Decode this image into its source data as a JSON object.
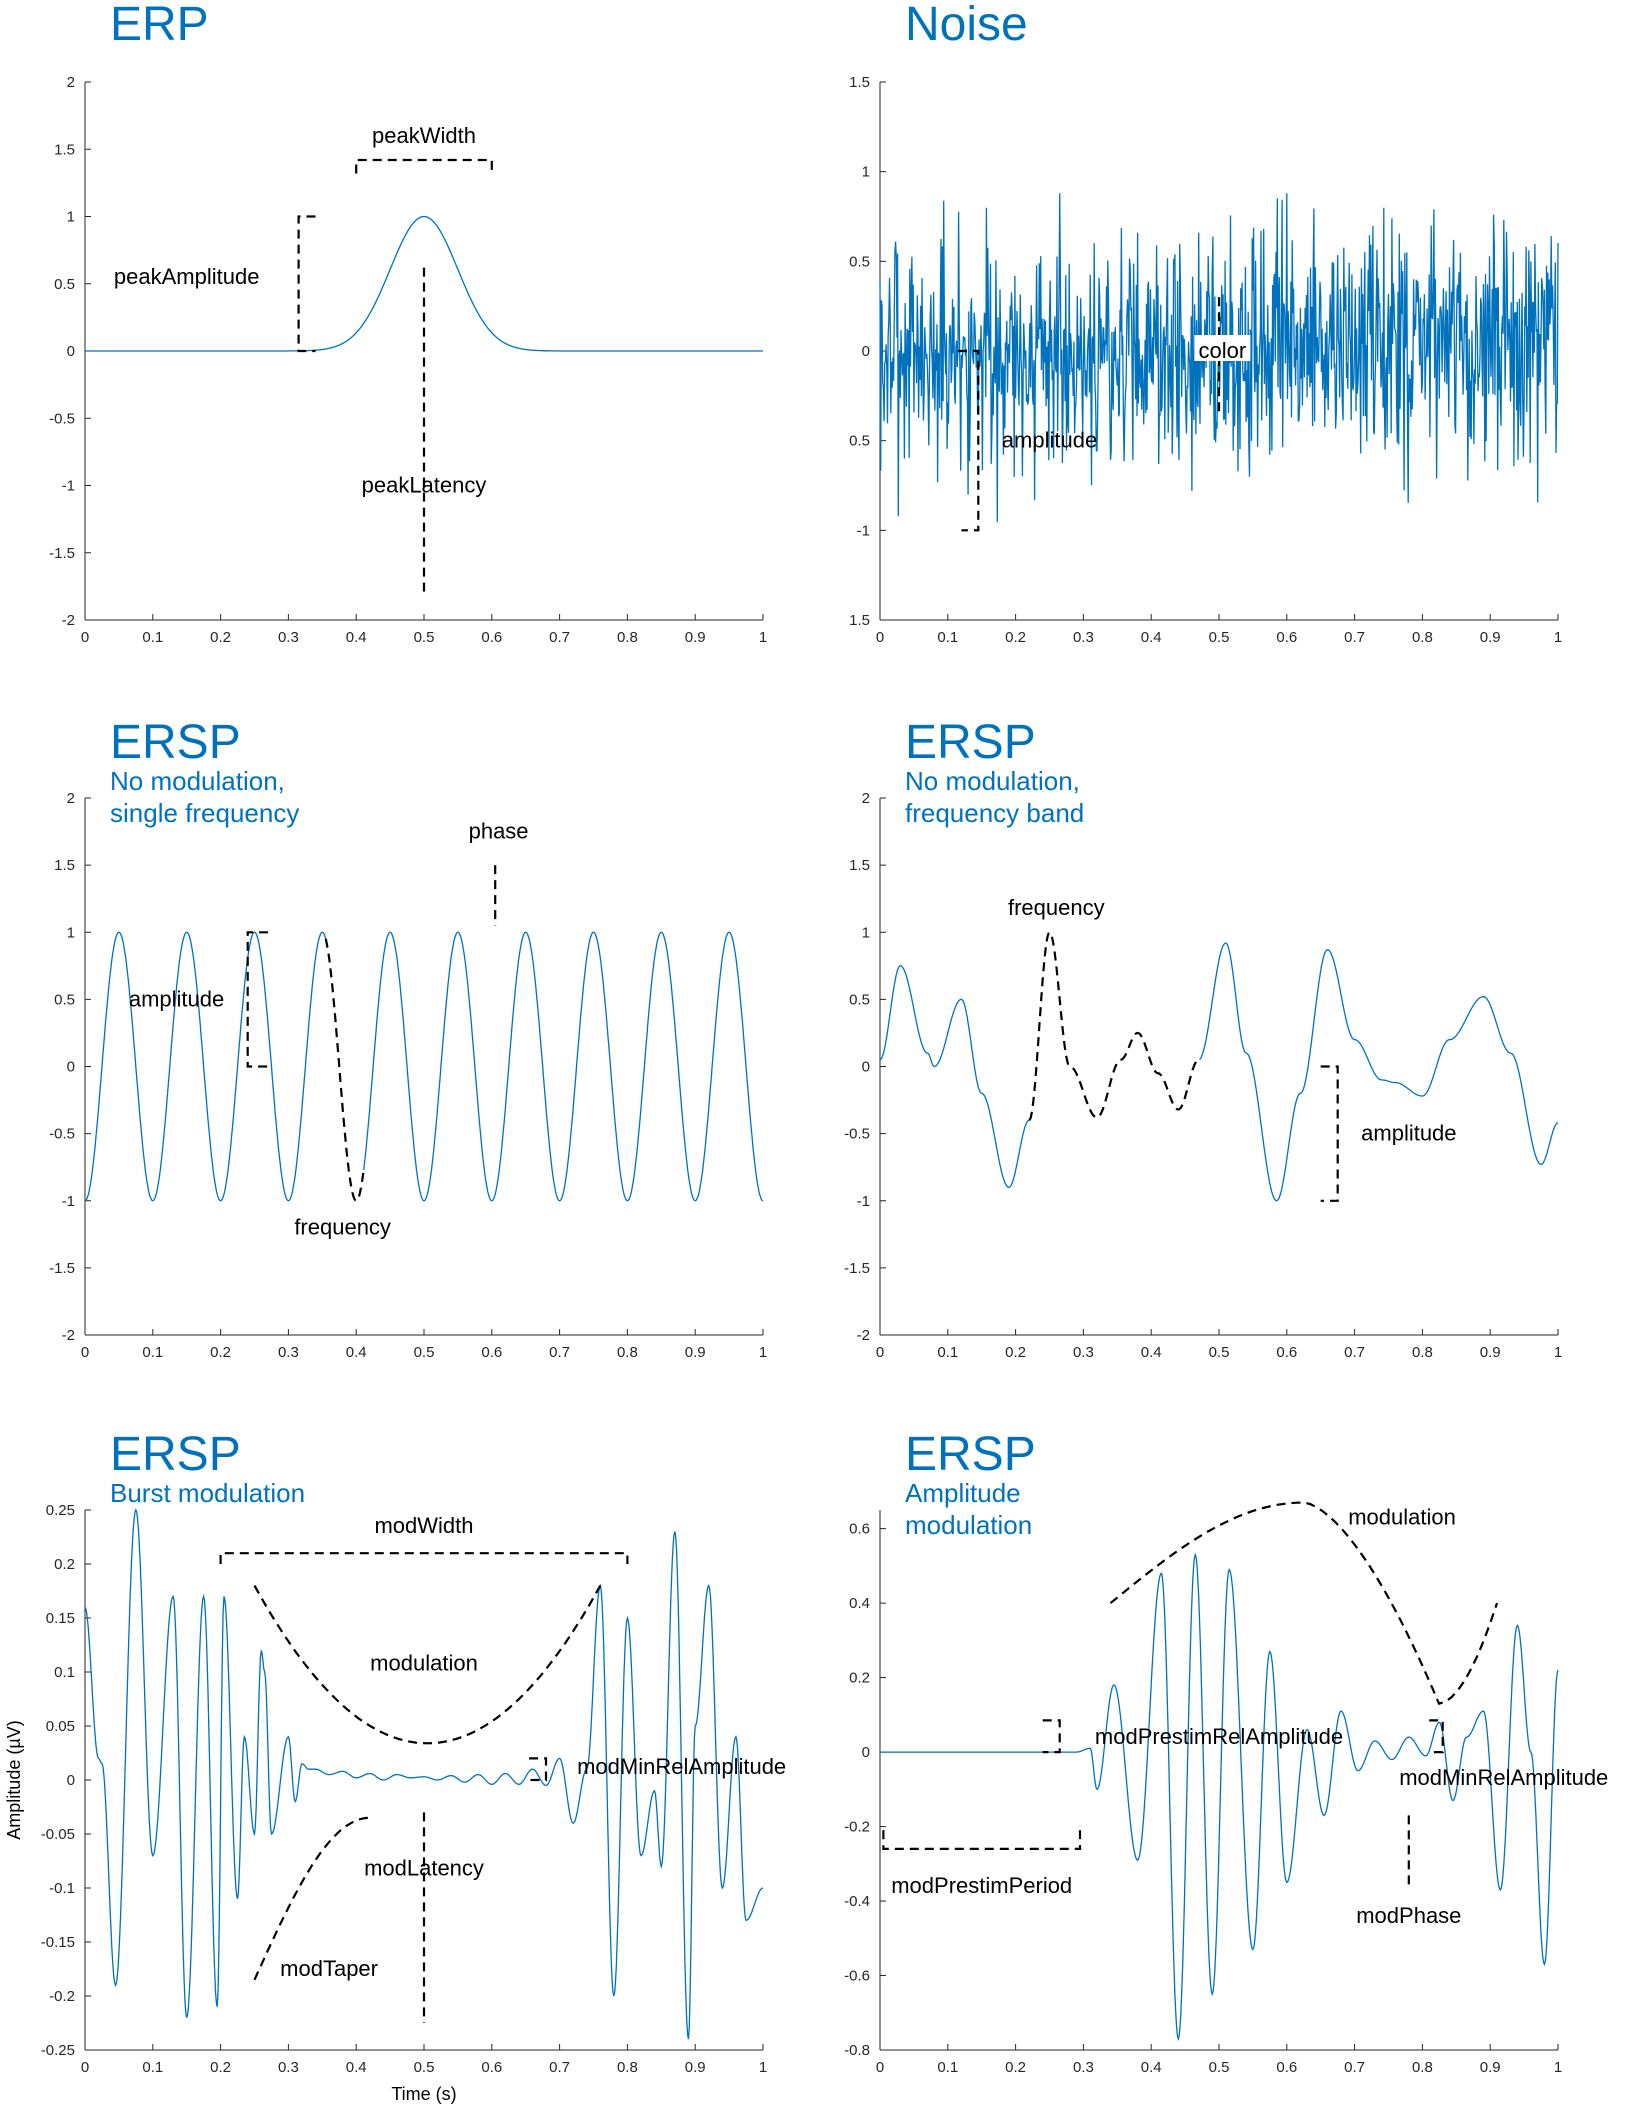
{
  "colors": {
    "line": "#0072bd",
    "title": "#0072bd",
    "annotation": "#000000",
    "axis": "#262626"
  },
  "chart_data": [
    {
      "type": "line",
      "title": "ERP",
      "subtitle": [],
      "x_ticks": [
        "0",
        "0.1",
        "0.2",
        "0.3",
        "0.4",
        "0.5",
        "0.6",
        "0.7",
        "0.8",
        "0.9",
        "1"
      ],
      "y_ticks": [
        "2",
        "1.5",
        "1",
        "0.5",
        "0",
        "-0.5",
        "-1",
        "-1.5",
        "-2"
      ],
      "xlim": [
        0,
        1
      ],
      "ylim": [
        -2,
        2
      ],
      "xlabel": "",
      "ylabel": "",
      "signal": {
        "kind": "gaussian",
        "center": 0.5,
        "sigma": 0.05,
        "amplitude": 1
      },
      "annotations": [
        {
          "text": "peakWidth",
          "x": 0.5,
          "y": 1.6
        },
        {
          "text": "peakAmplitude",
          "x": 0.15,
          "y": 0.55
        },
        {
          "text": "peakLatency",
          "x": 0.5,
          "y": -1.0
        }
      ],
      "guides": [
        {
          "kind": "bracket",
          "points": [
            [
              0.4,
              1.32
            ],
            [
              0.4,
              1.42
            ],
            [
              0.6,
              1.42
            ],
            [
              0.6,
              1.32
            ]
          ]
        },
        {
          "kind": "bracket",
          "points": [
            [
              0.34,
              1.0
            ],
            [
              0.315,
              1.0
            ],
            [
              0.315,
              0
            ],
            [
              0.34,
              0
            ]
          ]
        },
        {
          "kind": "line",
          "points": [
            [
              0.5,
              0.62
            ],
            [
              0.5,
              -1.8
            ]
          ]
        }
      ]
    },
    {
      "type": "line",
      "title": "Noise",
      "subtitle": [],
      "x_ticks": [
        "0",
        "0.1",
        "0.2",
        "0.3",
        "0.4",
        "0.5",
        "0.6",
        "0.7",
        "0.8",
        "0.9",
        "1"
      ],
      "y_ticks": [
        "1.5",
        "1",
        "0.5",
        "0",
        "0.5",
        "-1",
        "1.5"
      ],
      "xlim": [
        0,
        1
      ],
      "ylim": [
        -1.5,
        1.5
      ],
      "xlabel": "",
      "ylabel": "",
      "signal": {
        "kind": "noise",
        "seed": 7,
        "scale": 0.33,
        "clip": 1.0
      },
      "annotations": [
        {
          "text": "color",
          "x": 0.505,
          "y": 0
        },
        {
          "text": "amplitude",
          "x": 0.25,
          "y": -0.5
        }
      ],
      "guides": [
        {
          "kind": "bracket",
          "points": [
            [
              0.115,
              0
            ],
            [
              0.145,
              0
            ],
            [
              0.145,
              -1.0
            ],
            [
              0.12,
              -1.0
            ]
          ]
        },
        {
          "kind": "line",
          "points": [
            [
              0.5,
              0.3
            ],
            [
              0.5,
              -0.35
            ]
          ]
        }
      ]
    },
    {
      "type": "line",
      "title": "ERSP",
      "subtitle": [
        "No modulation,",
        "single frequency"
      ],
      "x_ticks": [
        "0",
        "0.1",
        "0.2",
        "0.3",
        "0.4",
        "0.5",
        "0.6",
        "0.7",
        "0.8",
        "0.9",
        "1"
      ],
      "y_ticks": [
        "2",
        "1.5",
        "1",
        "0.5",
        "0",
        "-0.5",
        "-1",
        "-1.5",
        "-2"
      ],
      "xlim": [
        0,
        1
      ],
      "ylim": [
        -2,
        2
      ],
      "xlabel": "",
      "ylabel": "",
      "signal": {
        "kind": "sine",
        "frequency": 10,
        "phase_shift": 0.05,
        "amplitude": 1,
        "dashed_from": 0.355,
        "dashed_to": 0.41
      },
      "annotations": [
        {
          "text": "phase",
          "x": 0.61,
          "y": 1.75
        },
        {
          "text": "amplitude",
          "x": 0.135,
          "y": 0.5
        },
        {
          "text": "frequency",
          "x": 0.38,
          "y": -1.2
        }
      ],
      "guides": [
        {
          "kind": "bracket",
          "points": [
            [
              0.27,
              1.0
            ],
            [
              0.24,
              1.0
            ],
            [
              0.24,
              0
            ],
            [
              0.27,
              0
            ]
          ]
        },
        {
          "kind": "line",
          "points": [
            [
              0.605,
              1.5
            ],
            [
              0.605,
              1.05
            ]
          ]
        }
      ]
    },
    {
      "type": "line",
      "title": "ERSP",
      "subtitle": [
        "No modulation,",
        "frequency band"
      ],
      "x_ticks": [
        "0",
        "0.1",
        "0.2",
        "0.3",
        "0.4",
        "0.5",
        "0.6",
        "0.7",
        "0.8",
        "0.9",
        "1"
      ],
      "y_ticks": [
        "2",
        "1.5",
        "1",
        "0.5",
        "0",
        "-0.5",
        "-1",
        "-1.5",
        "-2"
      ],
      "xlim": [
        0,
        1
      ],
      "ylim": [
        -2,
        2
      ],
      "xlabel": "",
      "ylabel": "",
      "signal": {
        "kind": "points",
        "x": [
          0,
          0.03,
          0.07,
          0.08,
          0.12,
          0.15,
          0.19,
          0.22,
          0.25,
          0.28,
          0.32,
          0.355,
          0.38,
          0.41,
          0.44,
          0.47,
          0.51,
          0.54,
          0.585,
          0.62,
          0.66,
          0.7,
          0.74,
          0.76,
          0.8,
          0.84,
          0.89,
          0.93,
          0.975,
          1
        ],
        "y": [
          0.05,
          0.75,
          0.1,
          0.0,
          0.5,
          -0.2,
          -0.9,
          -0.4,
          1.0,
          0.0,
          -0.38,
          0.05,
          0.25,
          -0.05,
          -0.32,
          0.05,
          0.92,
          0.1,
          -1.0,
          -0.2,
          0.87,
          0.2,
          -0.1,
          -0.12,
          -0.22,
          0.2,
          0.52,
          0.1,
          -0.73,
          -0.42
        ],
        "dashed_from": 0.22,
        "dashed_to": 0.47
      },
      "annotations": [
        {
          "text": "frequency",
          "x": 0.26,
          "y": 1.18
        },
        {
          "text": "amplitude",
          "x": 0.78,
          "y": -0.5
        }
      ],
      "guides": [
        {
          "kind": "bracket",
          "points": [
            [
              0.65,
              0
            ],
            [
              0.675,
              0
            ],
            [
              0.675,
              -1.0
            ],
            [
              0.65,
              -1.0
            ]
          ]
        }
      ]
    },
    {
      "type": "line",
      "title": "ERSP",
      "subtitle": [
        "Burst modulation"
      ],
      "x_ticks": [
        "0",
        "0.1",
        "0.2",
        "0.3",
        "0.4",
        "0.5",
        "0.6",
        "0.7",
        "0.8",
        "0.9",
        "1"
      ],
      "y_ticks": [
        "0.25",
        "0.2",
        "0.15",
        "0.1",
        "0.05",
        "0",
        "-0.05",
        "-0.1",
        "-0.15",
        "-0.2",
        "-0.25"
      ],
      "xlim": [
        0,
        1
      ],
      "ylim": [
        -0.25,
        0.25
      ],
      "xlabel": "Time (s)",
      "ylabel": "Amplitude (µV)",
      "signal": {
        "kind": "points",
        "x": [
          0,
          0.02,
          0.025,
          0.045,
          0.075,
          0.1,
          0.13,
          0.15,
          0.175,
          0.195,
          0.205,
          0.225,
          0.235,
          0.25,
          0.26,
          0.265,
          0.275,
          0.3,
          0.31,
          0.32,
          0.33,
          0.34,
          0.36,
          0.38,
          0.4,
          0.42,
          0.44,
          0.46,
          0.48,
          0.5,
          0.52,
          0.54,
          0.56,
          0.58,
          0.6,
          0.62,
          0.64,
          0.66,
          0.68,
          0.7,
          0.72,
          0.74,
          0.76,
          0.78,
          0.8,
          0.82,
          0.84,
          0.85,
          0.87,
          0.89,
          0.9,
          0.92,
          0.94,
          0.96,
          0.975,
          1
        ],
        "y": [
          0.16,
          0.02,
          0.015,
          -0.19,
          0.25,
          -0.07,
          0.17,
          -0.22,
          0.17,
          -0.21,
          0.17,
          -0.11,
          0.04,
          -0.05,
          0.12,
          0.1,
          -0.05,
          0.04,
          -0.02,
          0.015,
          0.01,
          0.01,
          0.005,
          0.008,
          0.002,
          0.006,
          0.0,
          0.005,
          0.002,
          0.003,
          0.0,
          0.004,
          -0.002,
          0.005,
          -0.004,
          0.006,
          -0.004,
          0.01,
          -0.005,
          0.02,
          -0.04,
          0.01,
          0.18,
          -0.2,
          0.15,
          -0.07,
          -0.01,
          -0.08,
          0.23,
          -0.24,
          0.05,
          0.18,
          -0.1,
          0.04,
          -0.13,
          -0.1
        ],
        "dashed_from": null,
        "dashed_to": null
      },
      "annotations": [
        {
          "text": "modWidth",
          "x": 0.5,
          "y": 0.235
        },
        {
          "text": "modulation",
          "x": 0.5,
          "y": 0.108
        },
        {
          "text": "modMinRelAmplitude",
          "x": 0.88,
          "y": 0.012
        },
        {
          "text": "modLatency",
          "x": 0.5,
          "y": -0.082
        },
        {
          "text": "modTaper",
          "x": 0.36,
          "y": -0.175
        }
      ],
      "guides": [
        {
          "kind": "bracket",
          "points": [
            [
              0.2,
              0.2
            ],
            [
              0.2,
              0.21
            ],
            [
              0.8,
              0.21
            ],
            [
              0.8,
              0.2
            ]
          ]
        },
        {
          "kind": "curve",
          "fn": "parabola",
          "from": 0.25,
          "to": 0.76,
          "top": 0.18,
          "bottom": 0.034
        },
        {
          "kind": "curve",
          "fn": "taper",
          "from": 0.25,
          "to": 0.42,
          "top": -0.035,
          "bottom": -0.185
        },
        {
          "kind": "bracket",
          "points": [
            [
              0.655,
              0.02
            ],
            [
              0.68,
              0.02
            ],
            [
              0.68,
              0.0
            ],
            [
              0.655,
              0.0
            ]
          ]
        },
        {
          "kind": "line",
          "points": [
            [
              0.5,
              -0.03
            ],
            [
              0.5,
              -0.225
            ]
          ]
        }
      ]
    },
    {
      "type": "line",
      "title": "ERSP",
      "subtitle": [
        "Amplitude",
        "modulation"
      ],
      "x_ticks": [
        "0",
        "0.1",
        "0.2",
        "0.3",
        "0.4",
        "0.5",
        "0.6",
        "0.7",
        "0.8",
        "0.9",
        "1"
      ],
      "y_ticks": [
        "0.6",
        "0.4",
        "0.2",
        "0",
        "-0.2",
        "-0.4",
        "-0.6",
        "-0.8"
      ],
      "xlim": [
        0,
        1
      ],
      "ylim": [
        -0.8,
        0.65
      ],
      "xlabel": "",
      "ylabel": "",
      "signal": {
        "kind": "points",
        "x": [
          0,
          0.1,
          0.2,
          0.26,
          0.29,
          0.31,
          0.32,
          0.345,
          0.38,
          0.415,
          0.44,
          0.465,
          0.49,
          0.515,
          0.55,
          0.575,
          0.6,
          0.63,
          0.655,
          0.68,
          0.705,
          0.73,
          0.755,
          0.78,
          0.805,
          0.825,
          0.845,
          0.865,
          0.89,
          0.915,
          0.94,
          0.96,
          0.98,
          1
        ],
        "y": [
          0,
          0,
          0,
          0,
          0.0,
          0.01,
          -0.1,
          0.18,
          -0.29,
          0.48,
          -0.77,
          0.53,
          -0.65,
          0.49,
          -0.53,
          0.27,
          -0.35,
          0.06,
          -0.17,
          0.11,
          -0.05,
          0.03,
          -0.02,
          0.04,
          -0.01,
          0.08,
          -0.13,
          0.04,
          0.11,
          -0.37,
          0.34,
          0.0,
          -0.57,
          0.22
        ],
        "dashed_from": null,
        "dashed_to": null
      },
      "annotations": [
        {
          "text": "modulation",
          "x": 0.77,
          "y": 0.63
        },
        {
          "text": "modPrestimRelAmplitude",
          "x": 0.5,
          "y": 0.04
        },
        {
          "text": "modMinRelAmplitude",
          "x": 0.92,
          "y": -0.07
        },
        {
          "text": "modPrestimPeriod",
          "x": 0.15,
          "y": -0.36
        },
        {
          "text": "modPhase",
          "x": 0.78,
          "y": -0.44
        }
      ],
      "guides": [
        {
          "kind": "curve",
          "fn": "arch",
          "from": 0.34,
          "to": 0.91,
          "top": 0.67,
          "bottom": 0.4,
          "end": 0.13
        },
        {
          "kind": "bracket",
          "points": [
            [
              0.24,
              0.085
            ],
            [
              0.265,
              0.085
            ],
            [
              0.265,
              0.0
            ],
            [
              0.24,
              0.0
            ]
          ]
        },
        {
          "kind": "bracket",
          "points": [
            [
              0.81,
              0.085
            ],
            [
              0.83,
              0.085
            ],
            [
              0.83,
              0.0
            ],
            [
              0.81,
              0.0
            ]
          ]
        },
        {
          "kind": "bracket",
          "points": [
            [
              0.005,
              -0.21
            ],
            [
              0.005,
              -0.26
            ],
            [
              0.295,
              -0.26
            ],
            [
              0.295,
              -0.21
            ]
          ]
        },
        {
          "kind": "line",
          "points": [
            [
              0.78,
              -0.17
            ],
            [
              0.78,
              -0.36
            ]
          ]
        }
      ]
    }
  ]
}
